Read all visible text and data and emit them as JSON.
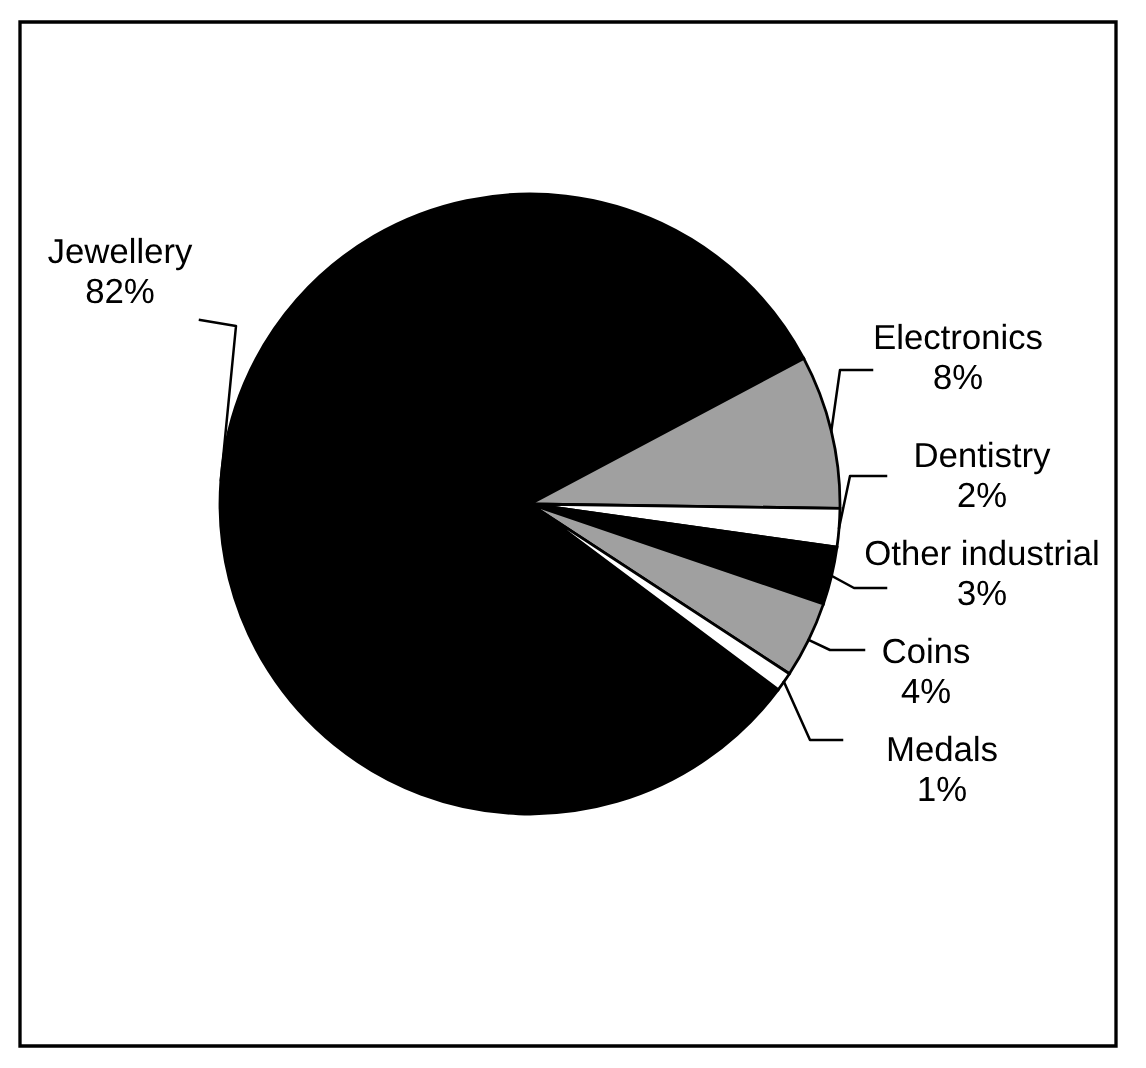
{
  "chart_data": {
    "type": "pie",
    "categories": [
      "Jewellery",
      "Electronics",
      "Dentistry",
      "Other industrial",
      "Coins",
      "Medals"
    ],
    "values": [
      82,
      8,
      2,
      3,
      4,
      1
    ],
    "value_labels": [
      "82%",
      "8%",
      "2%",
      "3%",
      "4%",
      "1%"
    ],
    "colors": [
      "#000000",
      "#a0a0a0",
      "#ffffff",
      "#000000",
      "#a0a0a0",
      "#ffffff"
    ]
  }
}
